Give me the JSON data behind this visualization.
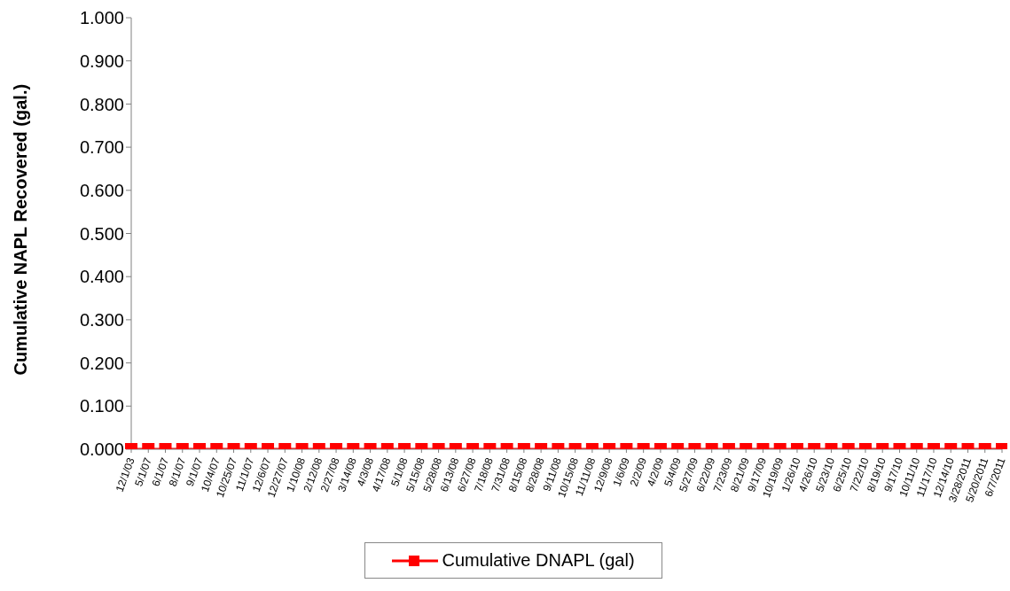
{
  "chart_data": {
    "type": "line",
    "ylabel": "Cumulative NAPL Recovered (gal.)",
    "categories": [
      "12/1/03",
      "5/1/07",
      "6/1/07",
      "8/1/07",
      "9/1/07",
      "10/4/07",
      "10/25/07",
      "11/1/07",
      "12/6/07",
      "12/27/07",
      "1/10/08",
      "2/12/08",
      "2/27/08",
      "3/14/08",
      "4/3/08",
      "4/17/08",
      "5/1/08",
      "5/15/08",
      "5/28/08",
      "6/13/08",
      "6/27/08",
      "7/18/08",
      "7/31/08",
      "8/15/08",
      "8/28/08",
      "9/11/08",
      "10/15/08",
      "11/11/08",
      "12/9/08",
      "1/6/09",
      "2/2/09",
      "4/2/09",
      "5/4/09",
      "5/27/09",
      "6/22/09",
      "7/23/09",
      "8/21/09",
      "9/17/09",
      "10/19/09",
      "1/26/10",
      "4/26/10",
      "5/23/10",
      "6/25/10",
      "7/22/10",
      "8/19/10",
      "9/17/10",
      "10/11/10",
      "11/17/10",
      "12/14/10",
      "3/28/2011",
      "5/20/2011",
      "6/7/2011"
    ],
    "series": [
      {
        "name": "Cumulative DNAPL (gal)",
        "color": "#ff0000",
        "values": [
          0,
          0,
          0,
          0,
          0,
          0,
          0,
          0,
          0,
          0,
          0,
          0,
          0,
          0,
          0,
          0,
          0,
          0,
          0,
          0,
          0,
          0,
          0,
          0,
          0,
          0,
          0,
          0,
          0,
          0,
          0,
          0,
          0,
          0,
          0,
          0,
          0,
          0,
          0,
          0,
          0,
          0,
          0,
          0,
          0,
          0,
          0,
          0,
          0,
          0,
          0,
          0
        ]
      }
    ],
    "ylim": [
      0,
      1
    ],
    "yticks": [
      {
        "value": 0,
        "label": "0.000"
      },
      {
        "value": 0.1,
        "label": "0.100"
      },
      {
        "value": 0.2,
        "label": "0.200"
      },
      {
        "value": 0.3,
        "label": "0.300"
      },
      {
        "value": 0.4,
        "label": "0.400"
      },
      {
        "value": 0.5,
        "label": "0.500"
      },
      {
        "value": 0.6,
        "label": "0.600"
      },
      {
        "value": 0.7,
        "label": "0.700"
      },
      {
        "value": 0.8,
        "label": "0.800"
      },
      {
        "value": 0.9,
        "label": "0.900"
      },
      {
        "value": 1,
        "label": "1.000"
      }
    ],
    "grid": false,
    "legend": "bottom",
    "marker": "square",
    "line_style": "solid"
  }
}
